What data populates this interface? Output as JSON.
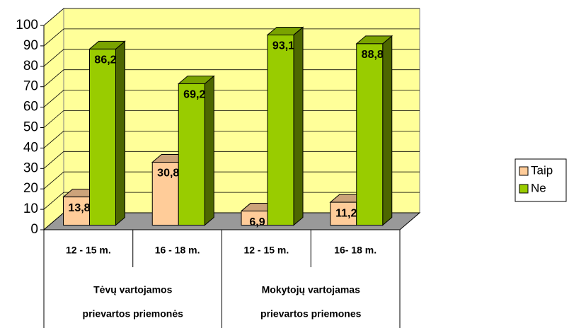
{
  "chart_data": {
    "type": "bar3d",
    "categories": [
      "12 - 15 m.",
      "16 - 18 m.",
      "12 - 15 m.",
      "16- 18 m."
    ],
    "groups": [
      [
        "Tėvų vartojamos",
        "prievartos priemonės"
      ],
      [
        "Mokytojų vartojamas",
        "prievartos priemones"
      ]
    ],
    "series": [
      {
        "name": "Taip",
        "color": "#ffcc99",
        "values": [
          13.8,
          30.8,
          6.9,
          11.2
        ],
        "value_labels": [
          "13,8",
          "30,8",
          "6,9",
          "11,2"
        ]
      },
      {
        "name": "Ne",
        "color": "#99cc00",
        "values": [
          86.2,
          69.2,
          93.1,
          88.8
        ],
        "value_labels": [
          "86,2",
          "69,2",
          "93,1",
          "88,8"
        ]
      }
    ],
    "ylim": [
      0,
      100
    ],
    "yticks": [
      0,
      10,
      20,
      30,
      40,
      50,
      60,
      70,
      80,
      90,
      100
    ],
    "grid": true,
    "legend": "right"
  }
}
